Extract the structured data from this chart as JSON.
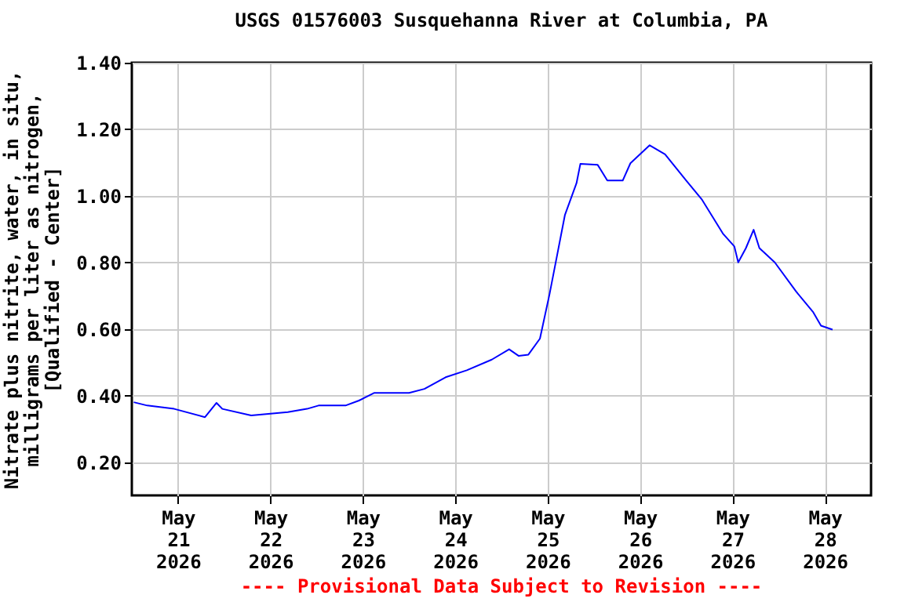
{
  "chart_data": {
    "type": "line",
    "title": "USGS 01576003 Susquehanna River at Columbia, PA",
    "ylabel": "Nitrate plus nitrite, water, in situ,\nmilligrams per liter as nitrogen,\n[Qualified - Center]",
    "annotations": [
      "---- Provisional Data Subject to Revision ----"
    ],
    "x": [
      "2026-05-20T12:30",
      "2026-05-20T16:00",
      "2026-05-20T23:00",
      "2026-05-21T07:00",
      "2026-05-21T10:00",
      "2026-05-21T11:30",
      "2026-05-21T19:00",
      "2026-05-22T04:30",
      "2026-05-22T09:30",
      "2026-05-22T12:30",
      "2026-05-22T19:30",
      "2026-05-22T23:00",
      "2026-05-23T03:00",
      "2026-05-23T12:00",
      "2026-05-23T16:00",
      "2026-05-23T21:30",
      "2026-05-24T03:00",
      "2026-05-24T09:30",
      "2026-05-24T14:00",
      "2026-05-24T16:30",
      "2026-05-24T19:00",
      "2026-05-24T22:00",
      "2026-05-25T00:30",
      "2026-05-25T02:30",
      "2026-05-25T04:30",
      "2026-05-25T07:30",
      "2026-05-25T08:30",
      "2026-05-25T13:00",
      "2026-05-25T15:30",
      "2026-05-25T19:30",
      "2026-05-25T21:30",
      "2026-05-26T02:30",
      "2026-05-26T06:30",
      "2026-05-26T12:00",
      "2026-05-26T16:00",
      "2026-05-26T21:30",
      "2026-05-27T00:30",
      "2026-05-27T01:30",
      "2026-05-27T03:30",
      "2026-05-27T05:30",
      "2026-05-27T07:00",
      "2026-05-27T11:00",
      "2026-05-27T16:30",
      "2026-05-27T21:00",
      "2026-05-27T23:00",
      "2026-05-28T02:00"
    ],
    "series": [
      {
        "color": "#0000ff",
        "values": [
          0.38,
          0.37,
          0.36,
          0.335,
          0.378,
          0.36,
          0.34,
          0.35,
          0.36,
          0.37,
          0.37,
          0.385,
          0.408,
          0.408,
          0.42,
          0.455,
          0.476,
          0.508,
          0.539,
          0.519,
          0.523,
          0.571,
          0.705,
          0.824,
          0.943,
          1.038,
          1.096,
          1.093,
          1.046,
          1.046,
          1.098,
          1.152,
          1.125,
          1.046,
          0.99,
          0.887,
          0.848,
          0.8,
          0.843,
          0.898,
          0.843,
          0.8,
          0.713,
          0.65,
          0.61,
          0.598
        ]
      }
    ],
    "xlim": [
      "2026-05-20T12:00",
      "2026-05-28T12:00"
    ],
    "xticks": [
      {
        "value": "2026-05-21",
        "label": "May\n21\n2026"
      },
      {
        "value": "2026-05-22",
        "label": "May\n22\n2026"
      },
      {
        "value": "2026-05-23",
        "label": "May\n23\n2026"
      },
      {
        "value": "2026-05-24",
        "label": "May\n24\n2026"
      },
      {
        "value": "2026-05-25",
        "label": "May\n25\n2026"
      },
      {
        "value": "2026-05-26",
        "label": "May\n26\n2026"
      },
      {
        "value": "2026-05-27",
        "label": "May\n27\n2026"
      },
      {
        "value": "2026-05-28",
        "label": "May\n28\n2026"
      }
    ],
    "ylim": [
      0.1,
      1.4
    ],
    "yticks": [
      {
        "value": 0.2,
        "label": "0.20"
      },
      {
        "value": 0.4,
        "label": "0.40"
      },
      {
        "value": 0.6,
        "label": "0.60"
      },
      {
        "value": 0.8,
        "label": "0.80"
      },
      {
        "value": 1.0,
        "label": "1.00"
      },
      {
        "value": 1.2,
        "label": "1.20"
      },
      {
        "value": 1.4,
        "label": "1.40"
      }
    ],
    "grid": true
  }
}
